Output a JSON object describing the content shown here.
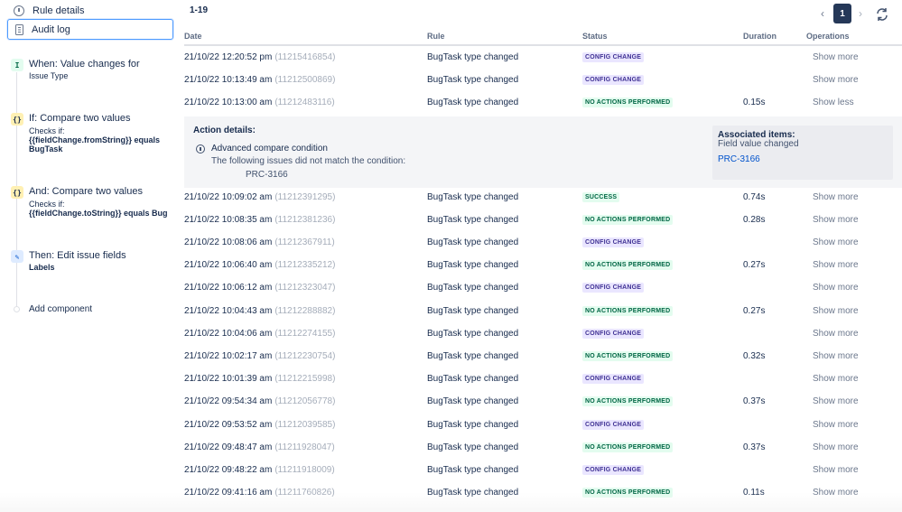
{
  "sidebar": {
    "rule_details": "Rule details",
    "audit_log": "Audit log",
    "steps": [
      {
        "icon": "trigger-icon",
        "glyph": "I",
        "title": "When: Value changes for",
        "lines": [
          "Issue Type"
        ]
      },
      {
        "icon": "condition-icon",
        "glyph": "{}",
        "title": "If: Compare two values",
        "lines": [
          "Checks if:",
          "{{fieldChange.fromString}} equals",
          "BugTask"
        ]
      },
      {
        "icon": "condition-icon",
        "glyph": "{}",
        "title": "And: Compare two values",
        "lines": [
          "Checks if:",
          "{{fieldChange.toString}} equals Bug"
        ]
      },
      {
        "icon": "pencil-icon",
        "glyph": "✎",
        "title": "Then: Edit issue fields",
        "lines": [
          "Labels"
        ]
      }
    ],
    "add_component": "Add component"
  },
  "main": {
    "range": "1-19",
    "pagination": {
      "current": "1",
      "prev": "‹",
      "next": "›"
    },
    "headers": {
      "date": "Date",
      "rule": "Rule",
      "status": "Status",
      "duration": "Duration",
      "operations": "Operations"
    },
    "rows": [
      {
        "date": "21/10/22 12:20:52 pm",
        "id": "(11215416854)",
        "rule": "BugTask type changed",
        "status": "CONFIG CHANGE",
        "duration": "",
        "op": "Show more"
      },
      {
        "date": "21/10/22 10:13:49 am",
        "id": "(11212500869)",
        "rule": "BugTask type changed",
        "status": "CONFIG CHANGE",
        "duration": "",
        "op": "Show more"
      },
      {
        "date": "21/10/22 10:13:00 am",
        "id": "(11212483116)",
        "rule": "BugTask type changed",
        "status": "NO ACTIONS PERFORMED",
        "duration": "0.15s",
        "op": "Show less"
      },
      {
        "date": "21/10/22 10:09:02 am",
        "id": "(11212391295)",
        "rule": "BugTask type changed",
        "status": "SUCCESS",
        "duration": "0.74s",
        "op": "Show more"
      },
      {
        "date": "21/10/22 10:08:35 am",
        "id": "(11212381236)",
        "rule": "BugTask type changed",
        "status": "NO ACTIONS PERFORMED",
        "duration": "0.28s",
        "op": "Show more"
      },
      {
        "date": "21/10/22 10:08:06 am",
        "id": "(11212367911)",
        "rule": "BugTask type changed",
        "status": "CONFIG CHANGE",
        "duration": "",
        "op": "Show more"
      },
      {
        "date": "21/10/22 10:06:40 am",
        "id": "(11212335212)",
        "rule": "BugTask type changed",
        "status": "NO ACTIONS PERFORMED",
        "duration": "0.27s",
        "op": "Show more"
      },
      {
        "date": "21/10/22 10:06:12 am",
        "id": "(11212323047)",
        "rule": "BugTask type changed",
        "status": "CONFIG CHANGE",
        "duration": "",
        "op": "Show more"
      },
      {
        "date": "21/10/22 10:04:43 am",
        "id": "(11212288882)",
        "rule": "BugTask type changed",
        "status": "NO ACTIONS PERFORMED",
        "duration": "0.27s",
        "op": "Show more"
      },
      {
        "date": "21/10/22 10:04:06 am",
        "id": "(11212274155)",
        "rule": "BugTask type changed",
        "status": "CONFIG CHANGE",
        "duration": "",
        "op": "Show more"
      },
      {
        "date": "21/10/22 10:02:17 am",
        "id": "(11212230754)",
        "rule": "BugTask type changed",
        "status": "NO ACTIONS PERFORMED",
        "duration": "0.32s",
        "op": "Show more"
      },
      {
        "date": "21/10/22 10:01:39 am",
        "id": "(11212215998)",
        "rule": "BugTask type changed",
        "status": "CONFIG CHANGE",
        "duration": "",
        "op": "Show more"
      },
      {
        "date": "21/10/22 09:54:34 am",
        "id": "(11212056778)",
        "rule": "BugTask type changed",
        "status": "NO ACTIONS PERFORMED",
        "duration": "0.37s",
        "op": "Show more"
      },
      {
        "date": "21/10/22 09:53:52 am",
        "id": "(11212039585)",
        "rule": "BugTask type changed",
        "status": "CONFIG CHANGE",
        "duration": "",
        "op": "Show more"
      },
      {
        "date": "21/10/22 09:48:47 am",
        "id": "(11211928047)",
        "rule": "BugTask type changed",
        "status": "NO ACTIONS PERFORMED",
        "duration": "0.37s",
        "op": "Show more"
      },
      {
        "date": "21/10/22 09:48:22 am",
        "id": "(11211918009)",
        "rule": "BugTask type changed",
        "status": "CONFIG CHANGE",
        "duration": "",
        "op": "Show more"
      },
      {
        "date": "21/10/22 09:41:16 am",
        "id": "(11211760826)",
        "rule": "BugTask type changed",
        "status": "NO ACTIONS PERFORMED",
        "duration": "0.11s",
        "op": "Show more"
      }
    ],
    "details": {
      "title": "Action details:",
      "condition": "Advanced compare condition",
      "description": "The following issues did not match the condition:",
      "issue": "PRC-3166",
      "assoc_title": "Associated items:",
      "assoc_sub": "Field value changed",
      "assoc_link": "PRC-3166"
    }
  },
  "colors": {
    "accent": "#0052cc",
    "config": "#403294",
    "success": "#006644",
    "selected_border": "#4c9aff"
  }
}
